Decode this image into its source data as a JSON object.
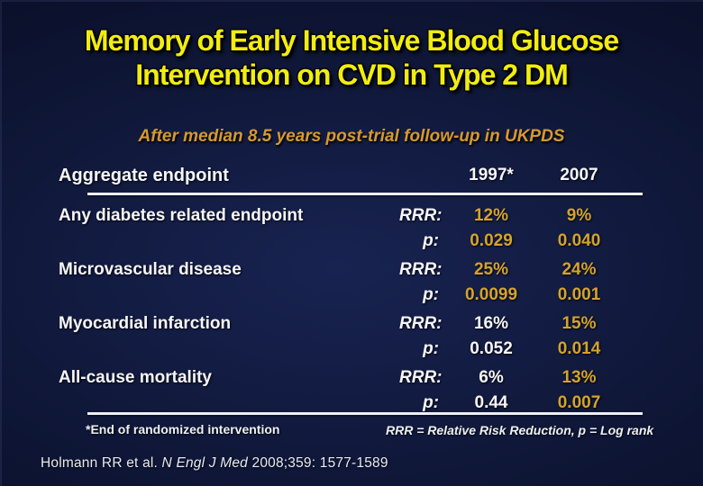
{
  "slide": {
    "title": {
      "line1": "Memory of Early Intensive Blood Glucose",
      "line2": "Intervention on CVD in Type 2 DM"
    },
    "subtitle": "After median 8.5 years post-trial follow-up in UKPDS",
    "table": {
      "header": {
        "endpoint_col": "Aggregate endpoint",
        "year_1997": "1997*",
        "year_2007": "2007"
      },
      "metric_labels": {
        "rrr": "RRR:",
        "p": "p:"
      },
      "rows": [
        {
          "label": "Any diabetes related endpoint",
          "rrr1997": {
            "v": "12%",
            "c": "gold"
          },
          "rrr2007": {
            "v": "9%",
            "c": "gold"
          },
          "p1997": {
            "v": "0.029",
            "c": "gold"
          },
          "p2007": {
            "v": "0.040",
            "c": "gold"
          }
        },
        {
          "label": "Microvascular disease",
          "rrr1997": {
            "v": "25%",
            "c": "gold"
          },
          "rrr2007": {
            "v": "24%",
            "c": "gold"
          },
          "p1997": {
            "v": "0.0099",
            "c": "gold"
          },
          "p2007": {
            "v": "0.001",
            "c": "gold"
          }
        },
        {
          "label": "Myocardial infarction",
          "rrr1997": {
            "v": "16%",
            "c": "white"
          },
          "rrr2007": {
            "v": "15%",
            "c": "gold"
          },
          "p1997": {
            "v": "0.052",
            "c": "white"
          },
          "p2007": {
            "v": "0.014",
            "c": "gold"
          }
        },
        {
          "label": "All-cause mortality",
          "rrr1997": {
            "v": "6%",
            "c": "white"
          },
          "rrr2007": {
            "v": "13%",
            "c": "gold"
          },
          "p1997": {
            "v": "0.44",
            "c": "white"
          },
          "p2007": {
            "v": "0.007",
            "c": "gold"
          }
        }
      ]
    },
    "footnotes": {
      "left": "*End of randomized intervention",
      "right": "RRR = Relative Risk Reduction, p = Log rank"
    },
    "citation": {
      "authors": "Holmann RR et al. ",
      "journal": "N Engl J Med",
      "detail": " 2008;359: 1577-1589"
    },
    "colors": {
      "title_yellow": "#F1ED10",
      "subtitle_orange": "#D6992E",
      "value_gold": "#D5A32C",
      "value_white": "#F6F6FA",
      "background_navy": "#0B1232",
      "divider_white": "#EEF0F5"
    }
  }
}
